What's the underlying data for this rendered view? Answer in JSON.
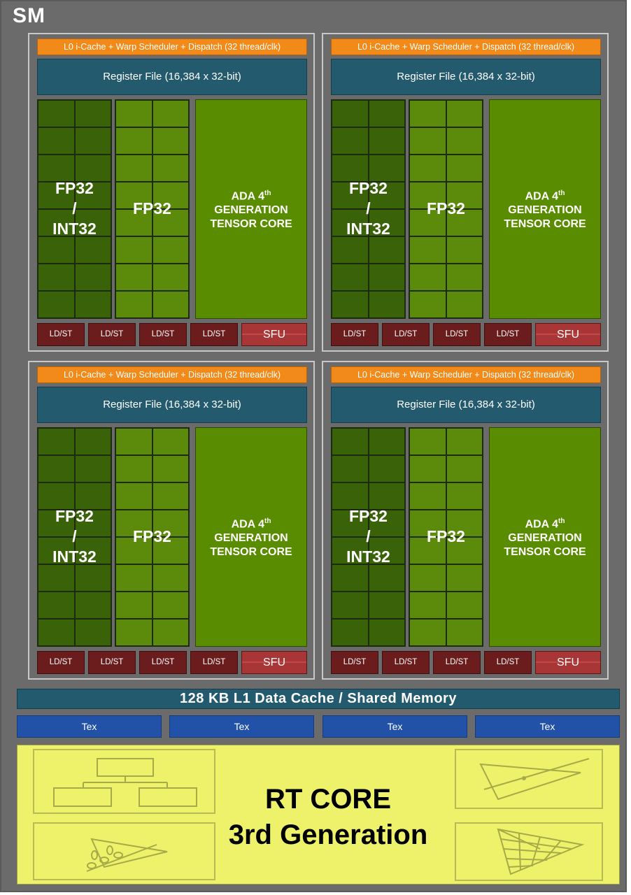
{
  "sm_title": "SM",
  "partitions": [
    {
      "scheduler": "L0 i-Cache + Warp Scheduler + Dispatch (32 thread/clk)",
      "register_file": "Register File (16,384 x 32-bit)",
      "fp32_int32": [
        "FP32",
        "/",
        "INT32"
      ],
      "fp32": "FP32",
      "tensor": [
        "ADA 4",
        "th",
        "GENERATION",
        "TENSOR CORE"
      ],
      "ldst": [
        "LD/ST",
        "LD/ST",
        "LD/ST",
        "LD/ST"
      ],
      "sfu": "SFU"
    },
    {
      "scheduler": "L0 i-Cache + Warp Scheduler + Dispatch (32 thread/clk)",
      "register_file": "Register File (16,384 x 32-bit)",
      "fp32_int32": [
        "FP32",
        "/",
        "INT32"
      ],
      "fp32": "FP32",
      "tensor": [
        "ADA 4",
        "th",
        "GENERATION",
        "TENSOR CORE"
      ],
      "ldst": [
        "LD/ST",
        "LD/ST",
        "LD/ST",
        "LD/ST"
      ],
      "sfu": "SFU"
    },
    {
      "scheduler": "L0 i-Cache + Warp Scheduler + Dispatch (32 thread/clk)",
      "register_file": "Register File (16,384 x 32-bit)",
      "fp32_int32": [
        "FP32",
        "/",
        "INT32"
      ],
      "fp32": "FP32",
      "tensor": [
        "ADA 4",
        "th",
        "GENERATION",
        "TENSOR CORE"
      ],
      "ldst": [
        "LD/ST",
        "LD/ST",
        "LD/ST",
        "LD/ST"
      ],
      "sfu": "SFU"
    },
    {
      "scheduler": "L0 i-Cache + Warp Scheduler + Dispatch (32 thread/clk)",
      "register_file": "Register File (16,384 x 32-bit)",
      "fp32_int32": [
        "FP32",
        "/",
        "INT32"
      ],
      "fp32": "FP32",
      "tensor": [
        "ADA 4",
        "th",
        "GENERATION",
        "TENSOR CORE"
      ],
      "ldst": [
        "LD/ST",
        "LD/ST",
        "LD/ST",
        "LD/ST"
      ],
      "sfu": "SFU"
    }
  ],
  "l1_cache": "128 KB L1 Data Cache / Shared Memory",
  "tex_units": [
    "Tex",
    "Tex",
    "Tex",
    "Tex"
  ],
  "rt_core": {
    "line1": "RT CORE",
    "line2": "3rd Generation"
  },
  "colors": {
    "scheduler": "#f28a1a",
    "register_file": "#235a6e",
    "fp32_int32": "#3a6309",
    "fp32": "#5c8a0a",
    "tensor": "#5a8c00",
    "ldst": "#6b1d1d",
    "sfu": "#a83636",
    "tex": "#2252a8",
    "rt_core": "#eef26a"
  },
  "icons": [
    "hierarchy-diagram-icon",
    "ray-triangle-intersection-icon",
    "triangle-leaves-icon",
    "subdivided-triangle-icon"
  ]
}
